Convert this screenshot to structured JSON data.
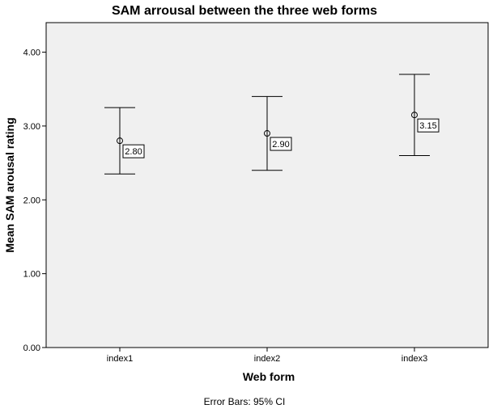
{
  "chart_data": {
    "type": "errorbar",
    "title": "SAM arrousal between the three web forms",
    "xlabel": "Web form",
    "ylabel": "Mean SAM arousal rating",
    "categories": [
      "index1",
      "index2",
      "index3"
    ],
    "means": [
      2.8,
      2.9,
      3.15
    ],
    "mean_labels": [
      "2.80",
      "2.90",
      "3.15"
    ],
    "ci_lower": [
      2.35,
      2.4,
      2.6
    ],
    "ci_upper": [
      3.25,
      3.4,
      3.7
    ],
    "ylim": [
      0,
      4.4
    ],
    "yticks": [
      0,
      1,
      2,
      3,
      4
    ],
    "ytick_labels": [
      "0.00",
      "1.00",
      "2.00",
      "3.00",
      "4.00"
    ],
    "grid": false,
    "plot_background": "#f0f0f0",
    "footnote": "Error Bars: 95% CI"
  }
}
